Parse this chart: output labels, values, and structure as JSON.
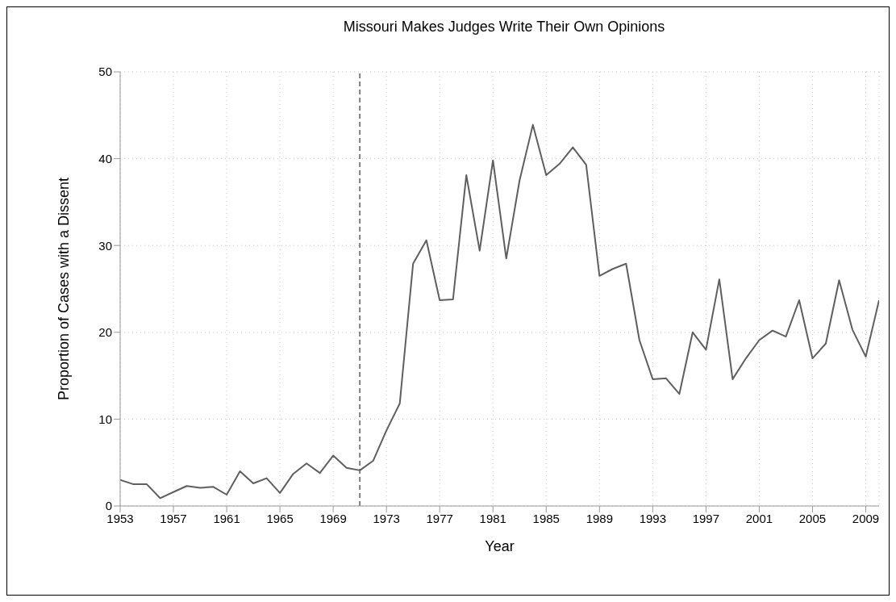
{
  "chart_data": {
    "type": "line",
    "title": "Missouri Makes Judges Write Their Own Opinions",
    "xlabel": "Year",
    "ylabel": "Proportion of Cases with a Dissent",
    "x": [
      1953,
      1954,
      1955,
      1956,
      1957,
      1958,
      1959,
      1960,
      1961,
      1962,
      1963,
      1964,
      1965,
      1966,
      1967,
      1968,
      1969,
      1970,
      1971,
      1972,
      1973,
      1974,
      1975,
      1976,
      1977,
      1978,
      1979,
      1980,
      1981,
      1982,
      1983,
      1984,
      1985,
      1986,
      1987,
      1988,
      1989,
      1990,
      1991,
      1992,
      1993,
      1994,
      1995,
      1996,
      1997,
      1998,
      1999,
      2000,
      2001,
      2002,
      2003,
      2004,
      2005,
      2006,
      2007,
      2008,
      2009,
      2010
    ],
    "series": [
      {
        "color": "#5f5f5f",
        "values": [
          3.0,
          2.5,
          2.5,
          0.9,
          1.6,
          2.3,
          2.1,
          2.2,
          1.3,
          4.0,
          2.6,
          3.2,
          1.5,
          3.7,
          4.9,
          3.8,
          5.8,
          4.4,
          4.1,
          5.2,
          8.7,
          11.8,
          27.9,
          30.6,
          23.7,
          23.8,
          38.1,
          29.4,
          39.8,
          28.5,
          37.5,
          43.9,
          38.1,
          39.4,
          41.3,
          39.3,
          26.5,
          27.3,
          27.9,
          19.1,
          14.6,
          14.7,
          12.9,
          20.0,
          18.0,
          26.1,
          14.6,
          17.0,
          19.1,
          20.2,
          19.5,
          23.7,
          17.0,
          18.7,
          26.0,
          20.3,
          17.2,
          23.7
        ]
      }
    ],
    "xlim": [
      1953,
      2010
    ],
    "xticks": [
      1953,
      1957,
      1961,
      1965,
      1969,
      1973,
      1977,
      1981,
      1985,
      1989,
      1993,
      1997,
      2001,
      2005,
      2009
    ],
    "ylim": [
      0,
      50
    ],
    "yticks": [
      0,
      10,
      20,
      30,
      40,
      50
    ],
    "grid": true,
    "marker": "none",
    "line_style": "solid",
    "ref_lines": [
      {
        "axis": "x",
        "value": 1971,
        "color": "#7f7f7f",
        "line_style": "dashed"
      }
    ]
  }
}
